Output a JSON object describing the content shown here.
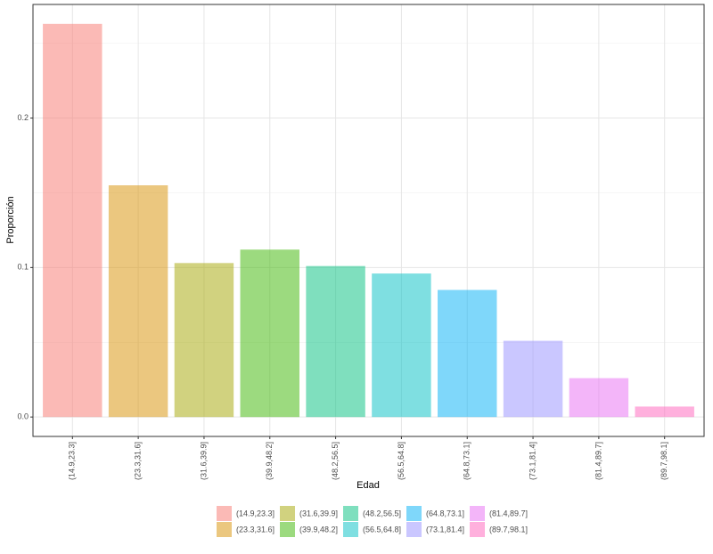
{
  "chart_data": {
    "type": "bar",
    "x_label": "Edad",
    "y_label": "Proporción",
    "categories": [
      "(14.9,23.3]",
      "(23.3,31.6]",
      "(31.6,39.9]",
      "(39.9,48.2]",
      "(48.2,56.5]",
      "(56.5,64.8]",
      "(64.8,73.1]",
      "(73.1,81.4]",
      "(81.4,89.7]",
      "(89.7,98.1]"
    ],
    "values": [
      0.263,
      0.155,
      0.103,
      0.112,
      0.101,
      0.096,
      0.085,
      0.051,
      0.026,
      0.007
    ],
    "colors": [
      "#F8766D",
      "#D89000",
      "#A3A500",
      "#39B600",
      "#00BF7D",
      "#00BFC4",
      "#00B0F6",
      "#9590FF",
      "#E76BF3",
      "#FF62BC"
    ],
    "alpha": 0.5,
    "ylim": [
      -0.013,
      0.276
    ],
    "yticks": [
      {
        "value": 0,
        "label": "0.0"
      },
      0.1,
      0.2
    ],
    "y_minor_ticks": [
      0.05,
      0.15,
      0.25
    ],
    "grid": true,
    "legend": "bottom"
  }
}
